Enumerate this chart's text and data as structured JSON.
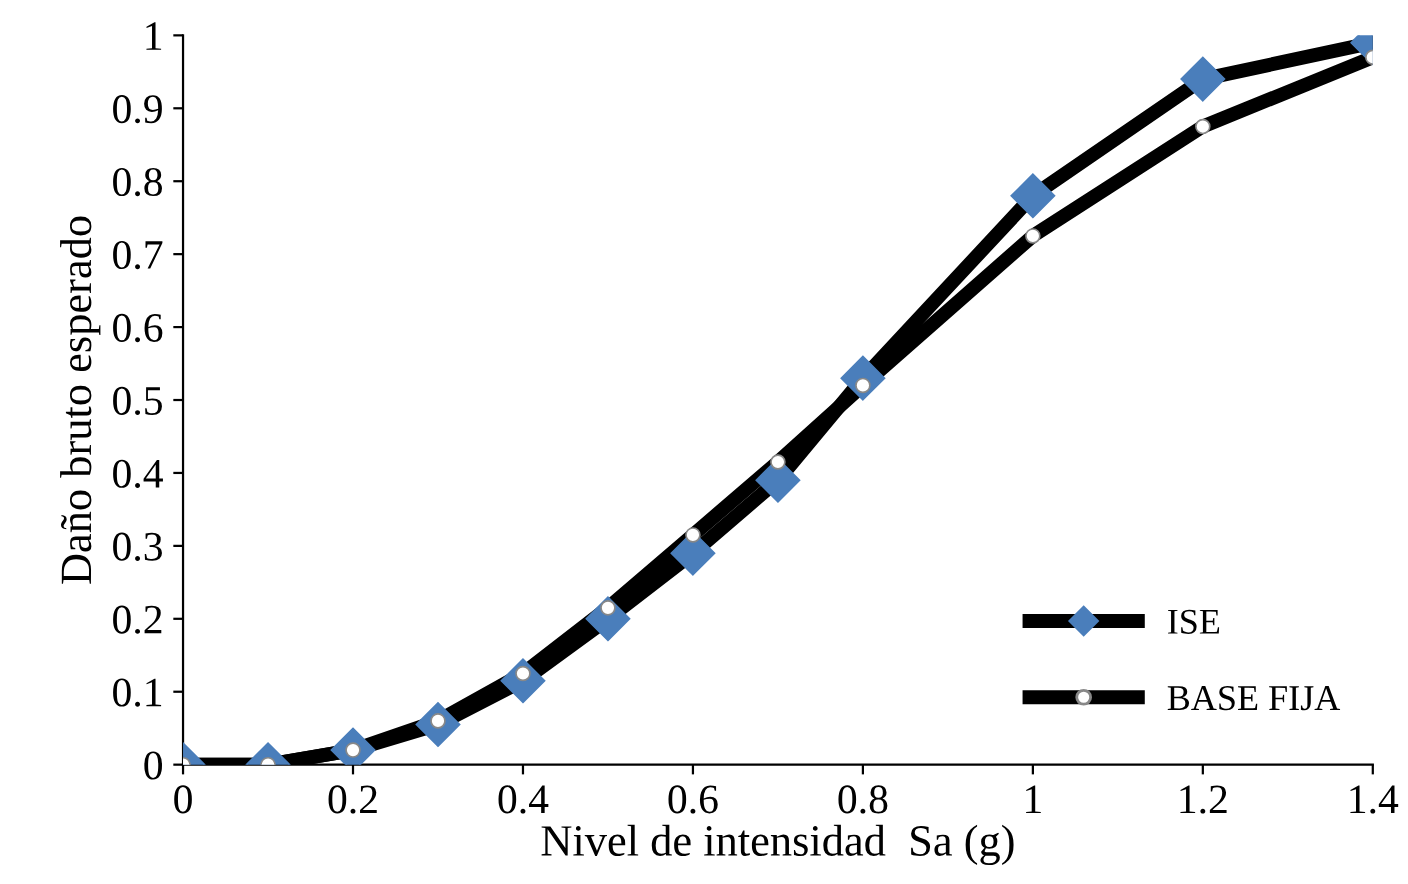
{
  "chart_data": {
    "type": "line",
    "xlabel": "Nivel de intensidad  Sa (g)",
    "ylabel": "Daño bruto esperado",
    "x": [
      0,
      0.1,
      0.2,
      0.3,
      0.4,
      0.5,
      0.6,
      0.7,
      0.8,
      1.0,
      1.2,
      1.4
    ],
    "series": [
      {
        "name": "ISE",
        "color": "#4a7ebb",
        "marker": "diamond",
        "values": [
          0,
          0,
          0.02,
          0.055,
          0.115,
          0.2,
          0.29,
          0.39,
          0.53,
          0.78,
          0.94,
          0.99
        ]
      },
      {
        "name": "BASE FIJA",
        "color": "#ffffff",
        "marker": "circle",
        "values": [
          0,
          0,
          0.02,
          0.06,
          0.125,
          0.215,
          0.315,
          0.415,
          0.52,
          0.725,
          0.875,
          0.97
        ]
      }
    ],
    "xlim": [
      0,
      1.4
    ],
    "xticks": [
      0,
      0.2,
      0.4,
      0.6,
      0.8,
      1,
      1.2,
      1.4
    ],
    "ylim": [
      0,
      1
    ],
    "yticks": [
      0,
      0.1,
      0.2,
      0.3,
      0.4,
      0.5,
      0.6,
      0.7,
      0.8,
      0.9,
      1
    ],
    "grid": false,
    "legend": "bottom right",
    "line_style": "solid"
  }
}
